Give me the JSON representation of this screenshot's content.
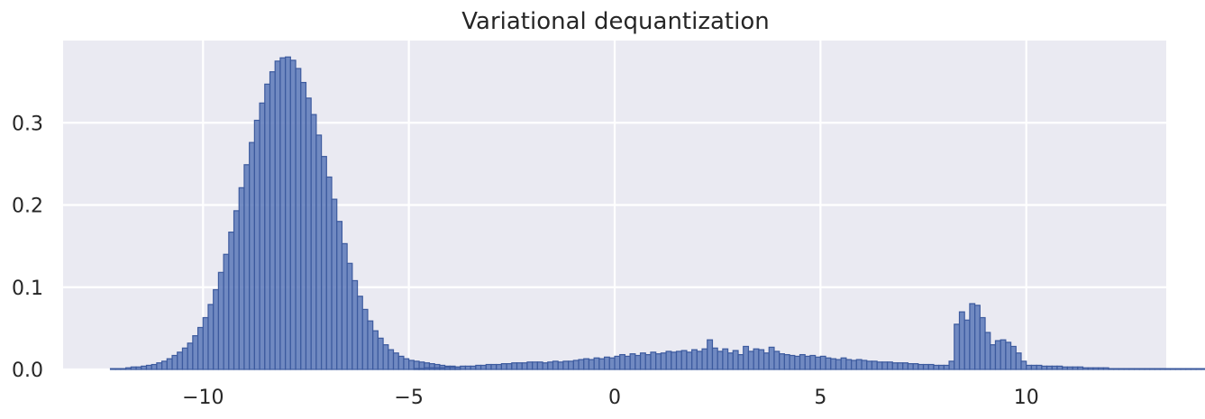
{
  "chart_data": {
    "type": "bar",
    "title": "Variational dequantization",
    "xlabel": "",
    "ylabel": "",
    "xlim": [
      -13.4,
      13.4
    ],
    "ylim": [
      0,
      0.4
    ],
    "xticks": [
      -10,
      -5,
      0,
      5,
      10
    ],
    "xtick_labels": [
      "−10",
      "−5",
      "0",
      "5",
      "10"
    ],
    "yticks": [
      0.0,
      0.1,
      0.2,
      0.3
    ],
    "ytick_labels": [
      "0.0",
      "0.1",
      "0.2",
      "0.3"
    ],
    "grid": true,
    "bin_width": 0.125,
    "bins_start": [
      -12.25,
      -4.875
    ],
    "series": [
      {
        "values": [
          [
            0.001,
            0.001,
            0.001,
            0.002,
            0.003,
            0.003,
            0.004,
            0.005,
            0.006,
            0.008,
            0.01,
            0.013,
            0.017,
            0.021,
            0.026,
            0.032,
            0.041,
            0.051,
            0.063,
            0.079,
            0.097,
            0.118,
            0.14,
            0.167,
            0.193,
            0.221,
            0.249,
            0.276,
            0.303,
            0.324,
            0.347,
            0.362,
            0.375,
            0.379,
            0.38,
            0.376,
            0.366,
            0.349,
            0.33,
            0.31,
            0.285,
            0.259,
            0.234,
            0.207,
            0.18,
            0.153,
            0.129,
            0.108,
            0.089,
            0.073,
            0.059,
            0.047,
            0.038,
            0.03,
            0.024,
            0.02,
            0.016,
            0.013,
            0.011,
            0.01,
            0.009,
            0.008,
            0.007,
            0.006,
            0.005,
            0.004,
            0.004,
            0.003
          ],
          [
            0.001,
            0.001,
            0.002,
            0.002,
            0.002,
            0.002,
            0.003,
            0.003,
            0.003,
            0.004,
            0.004,
            0.004,
            0.005,
            0.005,
            0.006,
            0.006,
            0.006,
            0.007,
            0.007,
            0.008,
            0.008,
            0.008,
            0.009,
            0.009,
            0.009,
            0.008,
            0.009,
            0.01,
            0.009,
            0.01,
            0.01,
            0.011,
            0.012,
            0.013,
            0.012,
            0.014,
            0.013,
            0.015,
            0.014,
            0.016,
            0.018,
            0.016,
            0.019,
            0.017,
            0.02,
            0.018,
            0.021,
            0.019,
            0.02,
            0.022,
            0.021,
            0.022,
            0.023,
            0.021,
            0.024,
            0.022,
            0.025,
            0.036,
            0.026,
            0.022,
            0.025,
            0.02,
            0.023,
            0.018,
            0.028,
            0.022,
            0.025,
            0.024,
            0.02,
            0.027,
            0.022,
            0.019,
            0.018,
            0.017,
            0.016,
            0.018,
            0.016,
            0.017,
            0.015,
            0.016,
            0.014,
            0.013,
            0.012,
            0.014,
            0.012,
            0.011,
            0.012,
            0.011,
            0.01,
            0.01,
            0.009,
            0.009,
            0.009,
            0.008,
            0.008,
            0.008,
            0.007,
            0.007,
            0.006,
            0.006,
            0.006,
            0.005,
            0.005,
            0.005,
            0.01,
            0.055,
            0.07,
            0.06,
            0.08,
            0.078,
            0.063,
            0.045,
            0.03,
            0.035,
            0.036,
            0.033,
            0.028,
            0.02,
            0.01,
            0.005,
            0.005,
            0.005,
            0.004,
            0.004,
            0.004,
            0.004,
            0.003,
            0.003,
            0.003,
            0.003,
            0.002,
            0.002,
            0.002,
            0.002,
            0.002,
            0.001,
            0.001,
            0.001,
            0.001,
            0.001,
            0.001,
            0.001,
            0.001,
            0.001,
            0.001,
            0.001,
            0.001,
            0.001,
            0.001,
            0.001,
            0.001,
            0.001,
            0.001,
            0.001,
            0.001,
            0.001,
            0.001,
            0.001,
            0.001,
            0.001,
            0.001,
            0.001,
            0.001,
            0.001,
            0.001,
            0.001,
            0.001,
            0.001,
            0.001,
            0.001,
            0.001,
            0.001,
            0.001,
            0.001,
            0.001,
            0.001,
            0.001
          ]
        ]
      }
    ],
    "colors": {
      "fill": "#5a78b8",
      "edge": "#3c5a9e",
      "background": "#eaeaf2",
      "grid": "#ffffff",
      "text": "#262626"
    }
  }
}
